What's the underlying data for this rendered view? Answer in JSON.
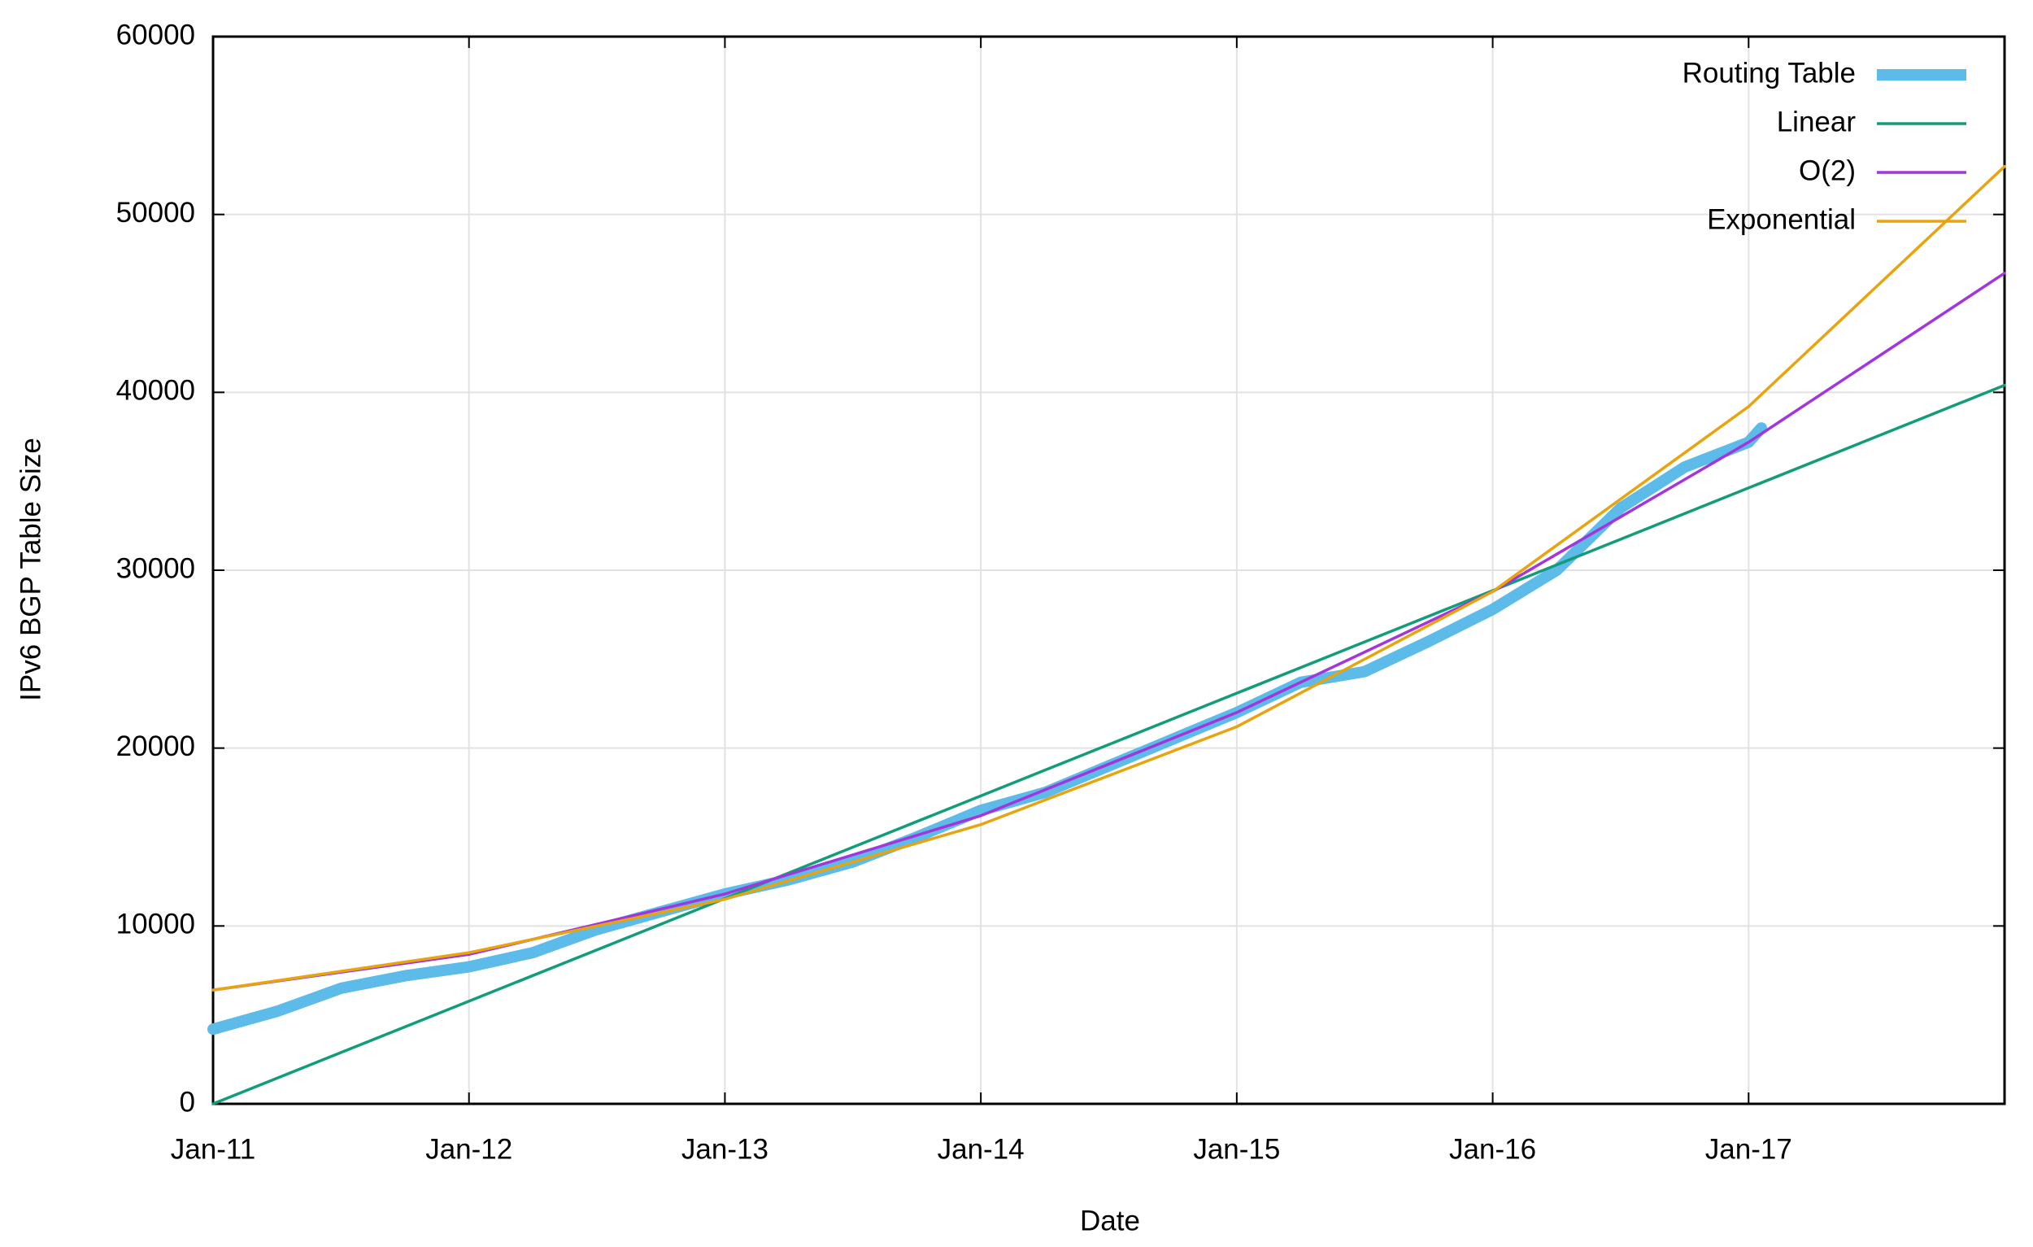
{
  "chart_data": {
    "type": "line",
    "x_label": "Date",
    "y_label": "IPv6 BGP Table Size",
    "xlim": [
      2011,
      2018
    ],
    "xticks": [
      {
        "value": 2011,
        "label": "Jan-11"
      },
      {
        "value": 2012,
        "label": "Jan-12"
      },
      {
        "value": 2013,
        "label": "Jan-13"
      },
      {
        "value": 2014,
        "label": "Jan-14"
      },
      {
        "value": 2015,
        "label": "Jan-15"
      },
      {
        "value": 2016,
        "label": "Jan-16"
      },
      {
        "value": 2017,
        "label": "Jan-17"
      }
    ],
    "ylim": [
      0,
      60000
    ],
    "yticks": [
      0,
      10000,
      20000,
      30000,
      40000,
      50000,
      60000
    ],
    "grid": true,
    "legend": "top-right",
    "series": [
      {
        "name": "Routing Table",
        "color": "#5cbbe9",
        "width": "thick",
        "x": [
          2011,
          2011.25,
          2011.5,
          2011.75,
          2012,
          2012.25,
          2012.5,
          2012.75,
          2013,
          2013.25,
          2013.5,
          2013.75,
          2014,
          2014.25,
          2014.5,
          2014.75,
          2015,
          2015.25,
          2015.5,
          2015.75,
          2016,
          2016.25,
          2016.5,
          2016.75,
          2017,
          2017.05
        ],
        "values": [
          4200,
          5200,
          6500,
          7200,
          7700,
          8500,
          9800,
          10800,
          11800,
          12600,
          13600,
          15000,
          16500,
          17500,
          19000,
          20500,
          22000,
          23700,
          24300,
          26000,
          27800,
          30000,
          33500,
          35800,
          37200,
          38000
        ]
      },
      {
        "name": "Linear",
        "color": "#119c7a",
        "width": "thin",
        "x": [
          2011,
          2018
        ],
        "values": [
          0,
          40400
        ]
      },
      {
        "name": "O(2)",
        "color": "#a335dc",
        "width": "thin",
        "x": [
          2011,
          2012,
          2013,
          2014,
          2015,
          2016,
          2017,
          2018
        ],
        "values": [
          6400,
          8400,
          11800,
          16200,
          22000,
          28800,
          37200,
          46700
        ]
      },
      {
        "name": "Exponential",
        "color": "#e8a40f",
        "width": "thin",
        "x": [
          2011,
          2012,
          2013,
          2014,
          2015,
          2016,
          2017,
          2018
        ],
        "values": [
          6400,
          8500,
          11500,
          15700,
          21200,
          28800,
          39200,
          52700
        ]
      }
    ]
  }
}
